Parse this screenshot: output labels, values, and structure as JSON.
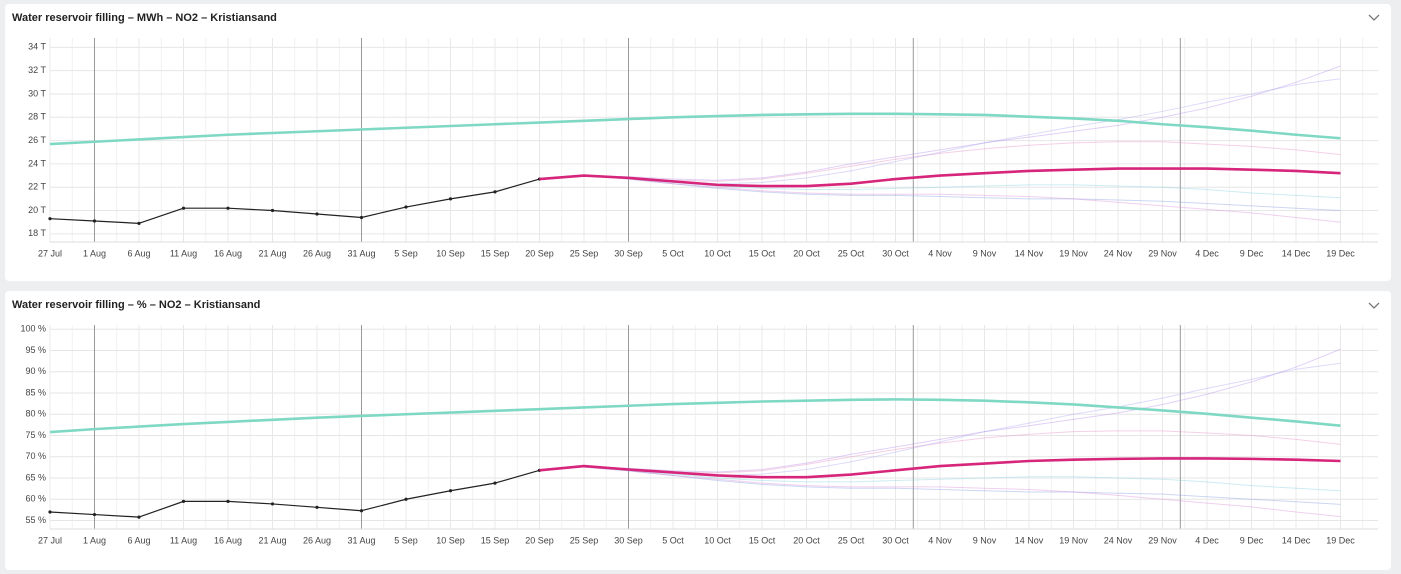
{
  "chart_data": [
    {
      "type": "line",
      "title": "Water reservoir filling – MWh – NO2 – Kristiansand",
      "categories": [
        "27 Jul",
        "1 Aug",
        "6 Aug",
        "11 Aug",
        "16 Aug",
        "21 Aug",
        "26 Aug",
        "31 Aug",
        "5 Sep",
        "10 Sep",
        "15 Sep",
        "20 Sep",
        "25 Sep",
        "30 Sep",
        "5 Oct",
        "10 Oct",
        "15 Oct",
        "20 Oct",
        "25 Oct",
        "30 Oct",
        "4 Nov",
        "9 Nov",
        "14 Nov",
        "19 Nov",
        "24 Nov",
        "29 Nov",
        "4 Dec",
        "9 Dec",
        "14 Dec",
        "19 Dec"
      ],
      "ylim": [
        17.3,
        34.8
      ],
      "yticks": [
        {
          "value": 18,
          "label": "18 T"
        },
        {
          "value": 20,
          "label": "20 T"
        },
        {
          "value": 22,
          "label": "22 T"
        },
        {
          "value": 24,
          "label": "24 T"
        },
        {
          "value": 26,
          "label": "26 T"
        },
        {
          "value": 28,
          "label": "28 T"
        },
        {
          "value": 30,
          "label": "30 T"
        },
        {
          "value": 32,
          "label": "32 T"
        },
        {
          "value": 34,
          "label": "34 T"
        }
      ],
      "grid": true,
      "series": [
        {
          "color": "#7f9be066",
          "values": [
            null,
            null,
            null,
            null,
            null,
            null,
            null,
            null,
            null,
            null,
            null,
            null,
            23.0,
            22.7,
            22.3,
            21.9,
            21.6,
            21.4,
            21.3,
            21.3,
            21.2,
            21.1,
            21.0,
            21.0,
            20.9,
            20.8,
            20.6,
            20.4,
            20.2,
            20.0
          ]
        },
        {
          "color": "#b58be866",
          "values": [
            null,
            null,
            null,
            null,
            null,
            null,
            null,
            null,
            null,
            null,
            null,
            null,
            23.0,
            22.9,
            22.7,
            22.6,
            22.8,
            23.3,
            24.0,
            24.6,
            25.2,
            25.8,
            26.3,
            26.8,
            27.3,
            28.0,
            28.8,
            29.8,
            31.0,
            32.4
          ]
        },
        {
          "color": "#e58ac466",
          "values": [
            null,
            null,
            null,
            null,
            null,
            null,
            null,
            null,
            null,
            null,
            null,
            null,
            23.0,
            22.8,
            22.6,
            22.5,
            22.7,
            23.2,
            23.8,
            24.4,
            24.9,
            25.3,
            25.6,
            25.8,
            25.9,
            25.9,
            25.7,
            25.5,
            25.2,
            24.8
          ]
        },
        {
          "color": "#7fd0e066",
          "values": [
            null,
            null,
            null,
            null,
            null,
            null,
            null,
            null,
            null,
            null,
            null,
            null,
            23.0,
            22.7,
            22.4,
            22.1,
            21.9,
            21.8,
            21.8,
            21.9,
            22.0,
            22.1,
            22.2,
            22.2,
            22.1,
            22.0,
            21.8,
            21.5,
            21.3,
            21.1
          ]
        },
        {
          "color": "#a9a6f066",
          "values": [
            null,
            null,
            null,
            null,
            null,
            null,
            null,
            null,
            null,
            null,
            null,
            null,
            23.0,
            22.8,
            22.5,
            22.3,
            22.4,
            22.8,
            23.4,
            24.2,
            25.0,
            25.8,
            26.5,
            27.2,
            27.8,
            28.5,
            29.3,
            30.0,
            30.8,
            31.3
          ]
        },
        {
          "color": "#d98ad866",
          "values": [
            null,
            null,
            null,
            null,
            null,
            null,
            null,
            null,
            null,
            null,
            null,
            null,
            23.0,
            22.7,
            22.3,
            22.0,
            21.7,
            21.5,
            21.4,
            21.4,
            21.4,
            21.3,
            21.2,
            21.0,
            20.7,
            20.4,
            20.1,
            19.8,
            19.4,
            19.0
          ]
        },
        {
          "color": "#7fd8c4",
          "values": [
            25.7,
            25.9,
            26.1,
            26.3,
            26.5,
            26.65,
            26.8,
            26.95,
            27.1,
            27.25,
            27.4,
            27.55,
            27.7,
            27.85,
            28.0,
            28.1,
            28.2,
            28.25,
            28.3,
            28.3,
            28.25,
            28.2,
            28.05,
            27.9,
            27.7,
            27.4,
            27.15,
            26.85,
            26.5,
            26.2
          ]
        },
        {
          "color": "#222222",
          "markers": true,
          "values": [
            19.3,
            19.1,
            18.9,
            20.2,
            20.2,
            20.0,
            19.7,
            19.4,
            20.3,
            21.0,
            21.6,
            22.7,
            null,
            null,
            null,
            null,
            null,
            null,
            null,
            null,
            null,
            null,
            null,
            null,
            null,
            null,
            null,
            null,
            null,
            null
          ]
        },
        {
          "color": "#d6257a",
          "values": [
            null,
            null,
            null,
            null,
            null,
            null,
            null,
            null,
            null,
            null,
            null,
            22.7,
            23.0,
            22.8,
            22.5,
            22.2,
            22.1,
            22.1,
            22.3,
            22.7,
            23.0,
            23.2,
            23.4,
            23.5,
            23.6,
            23.6,
            23.6,
            23.5,
            23.4,
            23.2
          ]
        }
      ]
    },
    {
      "type": "line",
      "title": "Water reservoir filling – % – NO2 – Kristiansand",
      "categories": [
        "27 Jul",
        "1 Aug",
        "6 Aug",
        "11 Aug",
        "16 Aug",
        "21 Aug",
        "26 Aug",
        "31 Aug",
        "5 Sep",
        "10 Sep",
        "15 Sep",
        "20 Sep",
        "25 Sep",
        "30 Sep",
        "5 Oct",
        "10 Oct",
        "15 Oct",
        "20 Oct",
        "25 Oct",
        "30 Oct",
        "4 Nov",
        "9 Nov",
        "14 Nov",
        "19 Nov",
        "24 Nov",
        "29 Nov",
        "4 Dec",
        "9 Dec",
        "14 Dec",
        "19 Dec"
      ],
      "ylim": [
        53,
        101
      ],
      "yticks": [
        {
          "value": 55,
          "label": "55 %"
        },
        {
          "value": 60,
          "label": "60 %"
        },
        {
          "value": 65,
          "label": "65 %"
        },
        {
          "value": 70,
          "label": "70 %"
        },
        {
          "value": 75,
          "label": "75 %"
        },
        {
          "value": 80,
          "label": "80 %"
        },
        {
          "value": 85,
          "label": "85 %"
        },
        {
          "value": 90,
          "label": "90 %"
        },
        {
          "value": 95,
          "label": "95 %"
        },
        {
          "value": 100,
          "label": "100 %"
        }
      ],
      "grid": true,
      "series": [
        {
          "color": "#7f9be066",
          "values": [
            null,
            null,
            null,
            null,
            null,
            null,
            null,
            null,
            null,
            null,
            null,
            null,
            67.6,
            66.7,
            65.6,
            64.4,
            63.5,
            62.9,
            62.6,
            62.6,
            62.3,
            62.0,
            61.7,
            61.7,
            61.4,
            61.2,
            60.6,
            60.0,
            59.4,
            58.8
          ]
        },
        {
          "color": "#b58be866",
          "values": [
            null,
            null,
            null,
            null,
            null,
            null,
            null,
            null,
            null,
            null,
            null,
            null,
            67.6,
            67.3,
            66.7,
            66.4,
            67.0,
            68.5,
            70.6,
            72.3,
            74.1,
            75.9,
            77.3,
            78.8,
            80.3,
            82.3,
            84.7,
            87.6,
            91.1,
            95.3
          ]
        },
        {
          "color": "#e58ac466",
          "values": [
            null,
            null,
            null,
            null,
            null,
            null,
            null,
            null,
            null,
            null,
            null,
            null,
            67.6,
            67.0,
            66.4,
            66.2,
            66.7,
            68.2,
            70.0,
            71.7,
            73.2,
            74.4,
            75.3,
            75.9,
            76.1,
            76.1,
            75.6,
            75.0,
            74.1,
            72.9
          ]
        },
        {
          "color": "#7fd0e066",
          "values": [
            null,
            null,
            null,
            null,
            null,
            null,
            null,
            null,
            null,
            null,
            null,
            null,
            67.6,
            66.7,
            65.9,
            65.0,
            64.4,
            64.1,
            64.1,
            64.4,
            64.7,
            65.0,
            65.3,
            65.3,
            65.0,
            64.7,
            64.1,
            63.2,
            62.6,
            62.0
          ]
        },
        {
          "color": "#a9a6f066",
          "values": [
            null,
            null,
            null,
            null,
            null,
            null,
            null,
            null,
            null,
            null,
            null,
            null,
            67.6,
            67.0,
            66.2,
            65.6,
            65.9,
            67.0,
            68.8,
            71.1,
            73.5,
            75.9,
            77.9,
            80.0,
            81.7,
            83.8,
            86.1,
            88.2,
            90.6,
            92.0
          ]
        },
        {
          "color": "#d98ad866",
          "values": [
            null,
            null,
            null,
            null,
            null,
            null,
            null,
            null,
            null,
            null,
            null,
            null,
            67.6,
            66.7,
            65.6,
            64.7,
            63.8,
            63.2,
            62.9,
            62.9,
            62.9,
            62.6,
            62.3,
            61.7,
            60.9,
            60.0,
            59.1,
            58.2,
            57.0,
            55.9
          ]
        },
        {
          "color": "#7fd8c4",
          "values": [
            75.8,
            76.5,
            77.1,
            77.7,
            78.2,
            78.7,
            79.2,
            79.6,
            80.0,
            80.4,
            80.8,
            81.2,
            81.6,
            82.0,
            82.4,
            82.7,
            83.0,
            83.2,
            83.4,
            83.5,
            83.4,
            83.2,
            82.8,
            82.3,
            81.6,
            80.9,
            80.1,
            79.2,
            78.3,
            77.3
          ]
        },
        {
          "color": "#222222",
          "markers": true,
          "values": [
            57.0,
            56.4,
            55.8,
            59.5,
            59.5,
            58.9,
            58.1,
            57.3,
            60.0,
            62.0,
            63.8,
            66.8,
            null,
            null,
            null,
            null,
            null,
            null,
            null,
            null,
            null,
            null,
            null,
            null,
            null,
            null,
            null,
            null,
            null,
            null
          ]
        },
        {
          "color": "#d6257a",
          "values": [
            null,
            null,
            null,
            null,
            null,
            null,
            null,
            null,
            null,
            null,
            null,
            66.8,
            67.8,
            67.0,
            66.3,
            65.6,
            65.2,
            65.2,
            65.8,
            66.8,
            67.8,
            68.4,
            69.0,
            69.3,
            69.5,
            69.6,
            69.6,
            69.5,
            69.3,
            69.0
          ]
        }
      ]
    }
  ]
}
